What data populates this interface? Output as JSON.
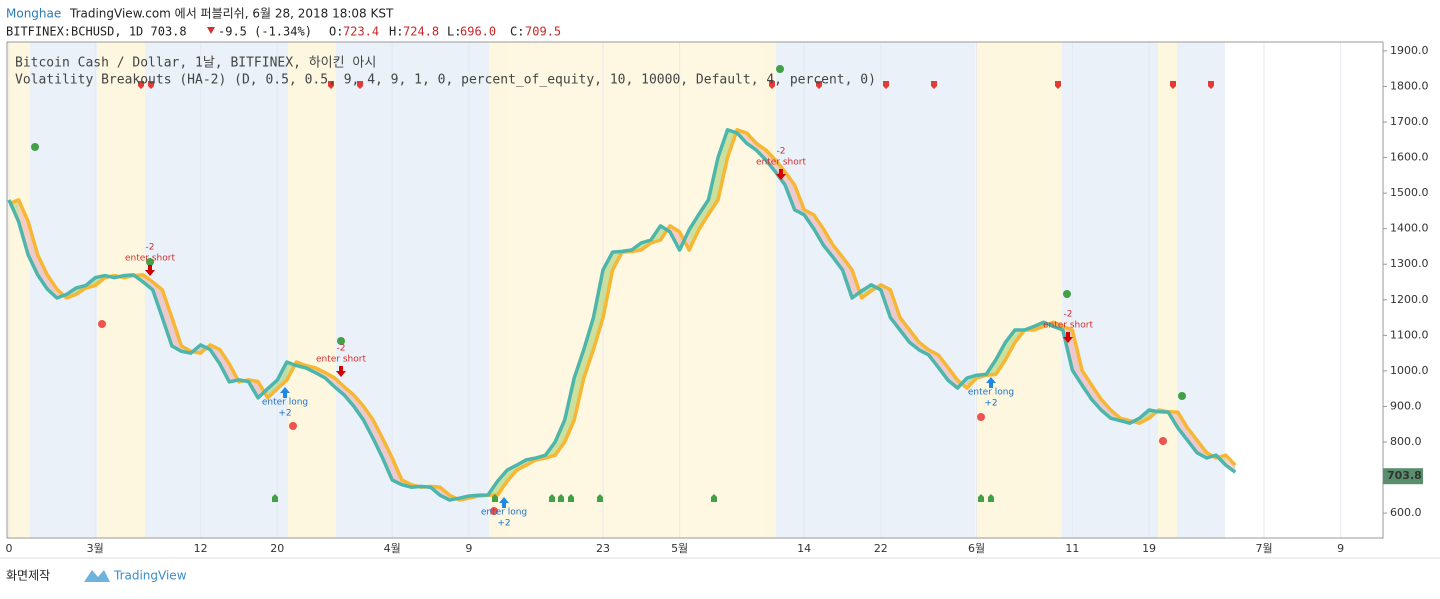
{
  "header": {
    "author": "Monghae",
    "published": "TradingView.com 에서 퍼블리쉬, 6월 28, 2018 18:08 KST",
    "symbol": "BITFINEX:BCHUSD, 1D 703.8",
    "change": "-9.5 (-1.34%)",
    "o_label": "O:",
    "o": "723.4",
    "h_label": "H:",
    "h": "724.8",
    "l_label": "L:",
    "l": "696.0",
    "c_label": "C:",
    "c": "709.5"
  },
  "footer": {
    "made": "화면제작",
    "brand": "TradingView"
  },
  "chart_data": {
    "type": "line",
    "legend": [
      "Bitcoin Cash / Dollar, 1날, BITFINEX, 하이킨 아시",
      "Volatility Breakouts (HA-2) (D, 0.5, 0.5, 9, 4, 9, 1, 0, percent_of_equity, 10, 10000, Default, 4, percent, 0)"
    ],
    "categories": [
      "0",
      null,
      null,
      null,
      null,
      null,
      null,
      null,
      null,
      "3월",
      null,
      null,
      null,
      null,
      null,
      null,
      null,
      null,
      null,
      null,
      "12",
      null,
      null,
      null,
      null,
      null,
      null,
      null,
      "20",
      null,
      null,
      null,
      null,
      null,
      null,
      null,
      null,
      null,
      null,
      null,
      "4월",
      null,
      null,
      null,
      null,
      null,
      null,
      null,
      "9",
      null,
      null,
      null,
      null,
      null,
      null,
      null,
      null,
      null,
      null,
      null,
      null,
      null,
      "23",
      null,
      null,
      null,
      null,
      null,
      null,
      null,
      "5월",
      null,
      null,
      null,
      null,
      null,
      null,
      null,
      null,
      null,
      null,
      null,
      null,
      "14",
      null,
      null,
      null,
      null,
      null,
      null,
      null,
      "22",
      null,
      null,
      null,
      null,
      null,
      null,
      null,
      null,
      null,
      "6월",
      null,
      null,
      null,
      null,
      null,
      null,
      null,
      null,
      null,
      "11",
      null,
      null,
      null,
      null,
      null,
      null,
      null,
      "19",
      null,
      null,
      null,
      null,
      null,
      null,
      null,
      null,
      null,
      null,
      null,
      "7월",
      null,
      null,
      null,
      null,
      null,
      null,
      null,
      "9",
      null,
      null,
      null,
      null
    ],
    "series": [
      {
        "color": "#4db6ac",
        "values": [
          1481,
          1420,
          1326,
          1270,
          1230,
          1205,
          1215,
          1233,
          1240,
          1262,
          1268,
          1262,
          1268,
          1270,
          1250,
          1228,
          1150,
          1070,
          1055,
          1050,
          1073,
          1060,
          1020,
          969,
          975,
          970,
          924,
          950,
          974,
          1025,
          1015,
          1008,
          995,
          980,
          955,
          932,
          900,
          862,
          810,
          755,
          693,
          680,
          673,
          675,
          673,
          650,
          637,
          642,
          648,
          650,
          651,
          690,
          721,
          735,
          750,
          755,
          763,
          800,
          862,
          980,
          1060,
          1150,
          1284,
          1334,
          1336,
          1340,
          1360,
          1368,
          1408,
          1391,
          1340,
          1397,
          1440,
          1481,
          1600,
          1678,
          1669,
          1640,
          1621,
          1593,
          1560,
          1523,
          1453,
          1439,
          1400,
          1354,
          1320,
          1284,
          1205,
          1225,
          1242,
          1228,
          1150,
          1115,
          1080,
          1059,
          1045,
          1010,
          974,
          952,
          980,
          988,
          990,
          1031,
          1080,
          1115,
          1115,
          1125,
          1137,
          1125,
          1115,
          1002,
          960,
          920,
          890,
          867,
          860,
          853,
          867,
          890,
          885,
          884,
          840,
          805,
          770,
          755,
          763,
          735,
          715,
          null,
          null,
          null,
          null,
          null,
          null,
          null,
          null,
          null,
          null,
          null,
          null,
          null,
          null,
          null
        ]
      },
      {
        "color": "#f7b733",
        "values": [
          1470,
          1481,
          1420,
          1326,
          1270,
          1230,
          1205,
          1215,
          1233,
          1240,
          1262,
          1268,
          1262,
          1268,
          1270,
          1250,
          1228,
          1150,
          1070,
          1055,
          1050,
          1073,
          1060,
          1020,
          969,
          975,
          970,
          924,
          950,
          974,
          1025,
          1015,
          1008,
          995,
          980,
          955,
          932,
          900,
          862,
          810,
          755,
          693,
          680,
          673,
          675,
          673,
          650,
          637,
          642,
          648,
          650,
          651,
          690,
          721,
          735,
          750,
          755,
          763,
          800,
          862,
          980,
          1060,
          1150,
          1284,
          1334,
          1336,
          1340,
          1360,
          1368,
          1408,
          1391,
          1340,
          1397,
          1440,
          1481,
          1600,
          1678,
          1669,
          1640,
          1621,
          1593,
          1560,
          1523,
          1453,
          1439,
          1400,
          1354,
          1320,
          1284,
          1205,
          1225,
          1242,
          1228,
          1150,
          1115,
          1080,
          1059,
          1045,
          1010,
          974,
          952,
          980,
          988,
          990,
          1031,
          1080,
          1115,
          1115,
          1125,
          1137,
          1125,
          1115,
          1002,
          960,
          920,
          890,
          867,
          860,
          853,
          867,
          890,
          885,
          884,
          840,
          805,
          770,
          755,
          763,
          735,
          null,
          null,
          null,
          null,
          null,
          null,
          null,
          null,
          null,
          null,
          null,
          null,
          null,
          null,
          null
        ]
      }
    ],
    "ylim": [
      530,
      1925
    ],
    "yticks": [
      {
        "value": 600,
        "label": "600.0"
      },
      {
        "value": 700,
        "label": "700.0"
      },
      {
        "value": 800,
        "label": "800.0"
      },
      {
        "value": 900,
        "label": "900.0"
      },
      {
        "value": 1000,
        "label": "1000.0"
      },
      {
        "value": 1100,
        "label": "1100.0"
      },
      {
        "value": 1200,
        "label": "1200.0"
      },
      {
        "value": 1300,
        "label": "1300.0"
      },
      {
        "value": 1400,
        "label": "1400.0"
      },
      {
        "value": 1500,
        "label": "1500.0"
      },
      {
        "value": 1600,
        "label": "1600.0"
      },
      {
        "value": 1700,
        "label": "1700.0"
      },
      {
        "value": 1800,
        "label": "1800.0"
      },
      {
        "value": 1900,
        "label": "1900.0"
      }
    ],
    "grid": true,
    "last_price": 703.8,
    "last_price_color": "#5a8f6e",
    "annotations": [
      {
        "label": "-2",
        "text": "enter short"
      },
      {
        "text": "enter long",
        "label": "+2"
      },
      {
        "label": "-2",
        "text": "enter short"
      },
      {
        "text": "enter long",
        "label": "+2"
      },
      {
        "label": "-2",
        "text": "enter short"
      },
      {
        "text": "enter long",
        "label": "+2"
      },
      {
        "label": "-2",
        "text": "enter short"
      }
    ]
  }
}
